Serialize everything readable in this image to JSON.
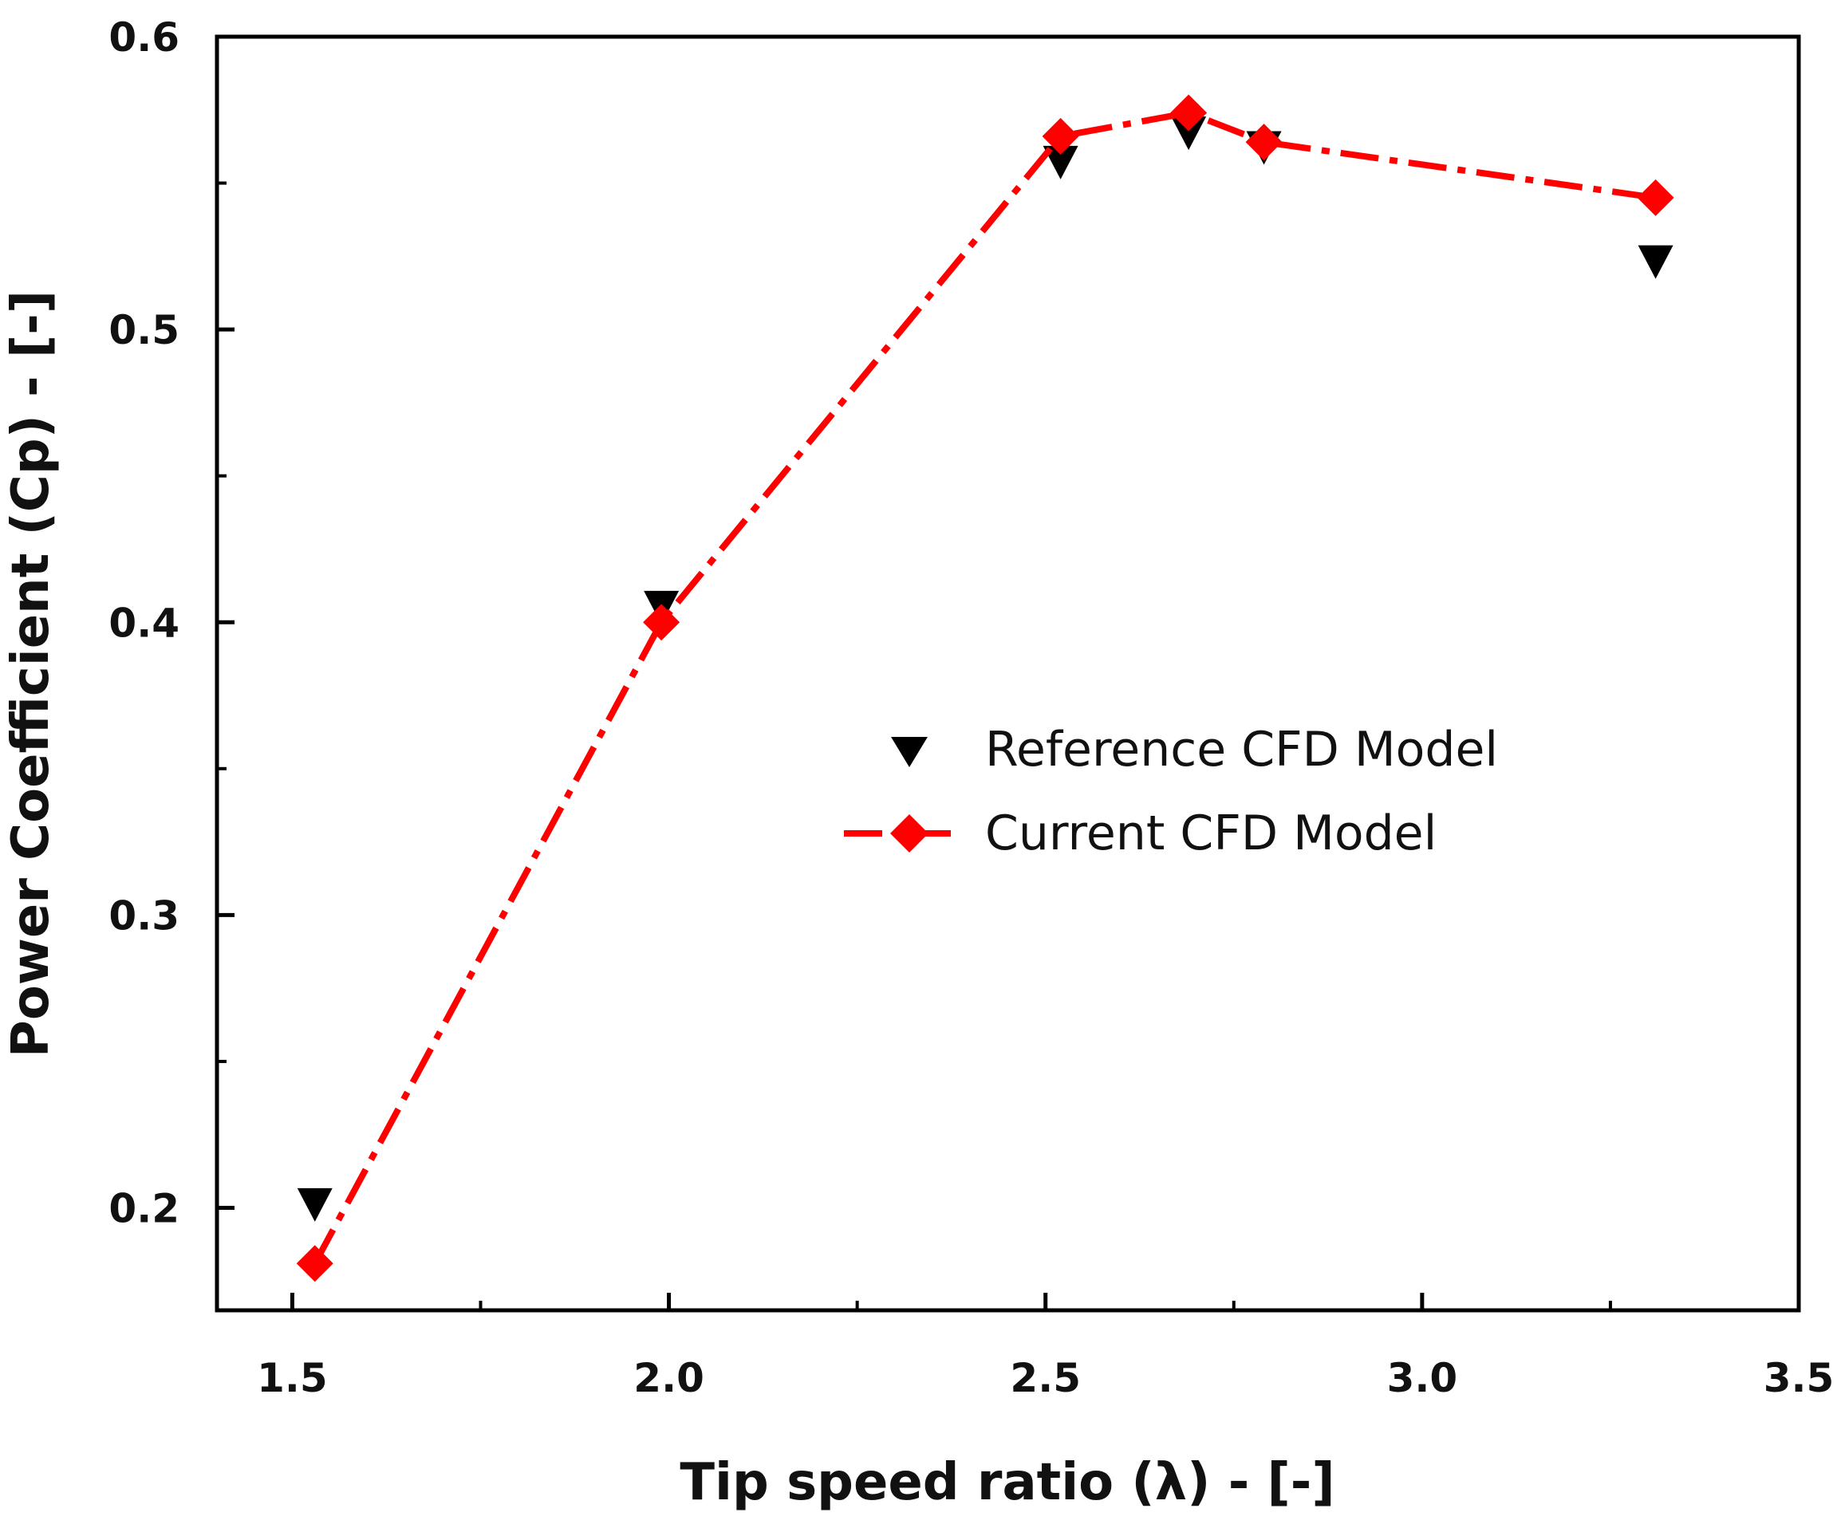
{
  "chart_data": {
    "type": "scatter",
    "title": "",
    "xlabel": "Tip speed ratio (λ) - [-]",
    "ylabel": "Power Coefficient (Cp) - [-]",
    "xlim": [
      1.4,
      3.5
    ],
    "ylim": [
      0.165,
      0.6
    ],
    "x_ticks": [
      1.5,
      2.0,
      2.5,
      3.0,
      3.5
    ],
    "x_tick_labels": [
      "1.5",
      "2.0",
      "2.5",
      "3.0",
      "3.5"
    ],
    "y_ticks": [
      0.2,
      0.3,
      0.4,
      0.5,
      0.6
    ],
    "y_tick_labels": [
      "0.2",
      "0.3",
      "0.4",
      "0.5",
      "0.6"
    ],
    "x_minor_ticks": [
      1.75,
      2.25,
      2.75,
      3.25
    ],
    "y_minor_ticks": [
      0.25,
      0.35,
      0.45,
      0.55
    ],
    "grid": false,
    "legend_position": "center-right",
    "series": [
      {
        "name": "Reference CFD Model",
        "marker": "triangle-down",
        "line": "none",
        "color": "#000000",
        "x": [
          1.53,
          1.99,
          2.52,
          2.69,
          2.79,
          3.31
        ],
        "y": [
          0.201,
          0.405,
          0.557,
          0.567,
          0.562,
          0.523
        ]
      },
      {
        "name": "Current CFD Model",
        "marker": "diamond",
        "line": "dash-dot",
        "color": "#ff0000",
        "x": [
          1.53,
          1.99,
          2.52,
          2.69,
          2.79,
          3.31
        ],
        "y": [
          0.181,
          0.4,
          0.566,
          0.574,
          0.564,
          0.545
        ]
      }
    ]
  }
}
